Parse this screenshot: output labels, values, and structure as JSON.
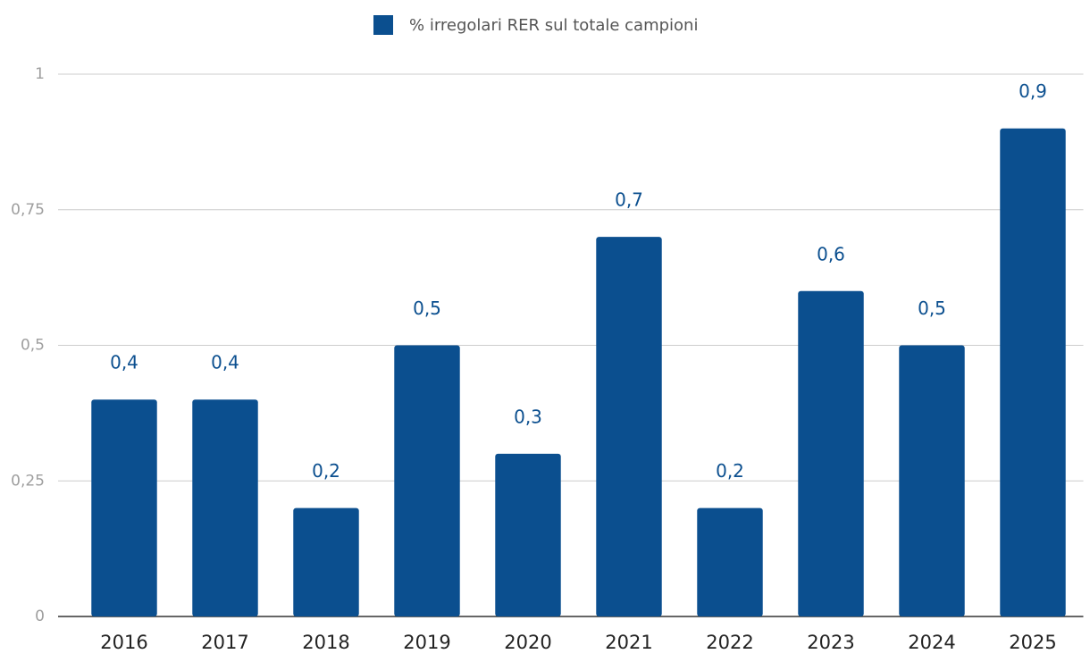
{
  "chart_data": {
    "type": "bar",
    "legend": {
      "position": "top"
    },
    "series": [
      {
        "name": "% irregolari RER sul totale campioni",
        "color": "#0b4f8f",
        "values": [
          0.4,
          0.4,
          0.2,
          0.5,
          0.3,
          0.7,
          0.2,
          0.6,
          0.5,
          0.9
        ],
        "value_labels": [
          "0,4",
          "0,4",
          "0,2",
          "0,5",
          "0,3",
          "0,7",
          "0,2",
          "0,6",
          "0,5",
          "0,9"
        ]
      }
    ],
    "categories": [
      "2016",
      "2017",
      "2018",
      "2019",
      "2020",
      "2021",
      "2022",
      "2023",
      "2024",
      "2025"
    ],
    "ylim": [
      0,
      1
    ],
    "yticks": [
      0,
      {
        "value": 0.25,
        "label": "0,25"
      },
      {
        "value": 0.5,
        "label": "0,5"
      },
      {
        "value": 0.75,
        "label": "0,75"
      },
      1
    ],
    "grid": true
  }
}
